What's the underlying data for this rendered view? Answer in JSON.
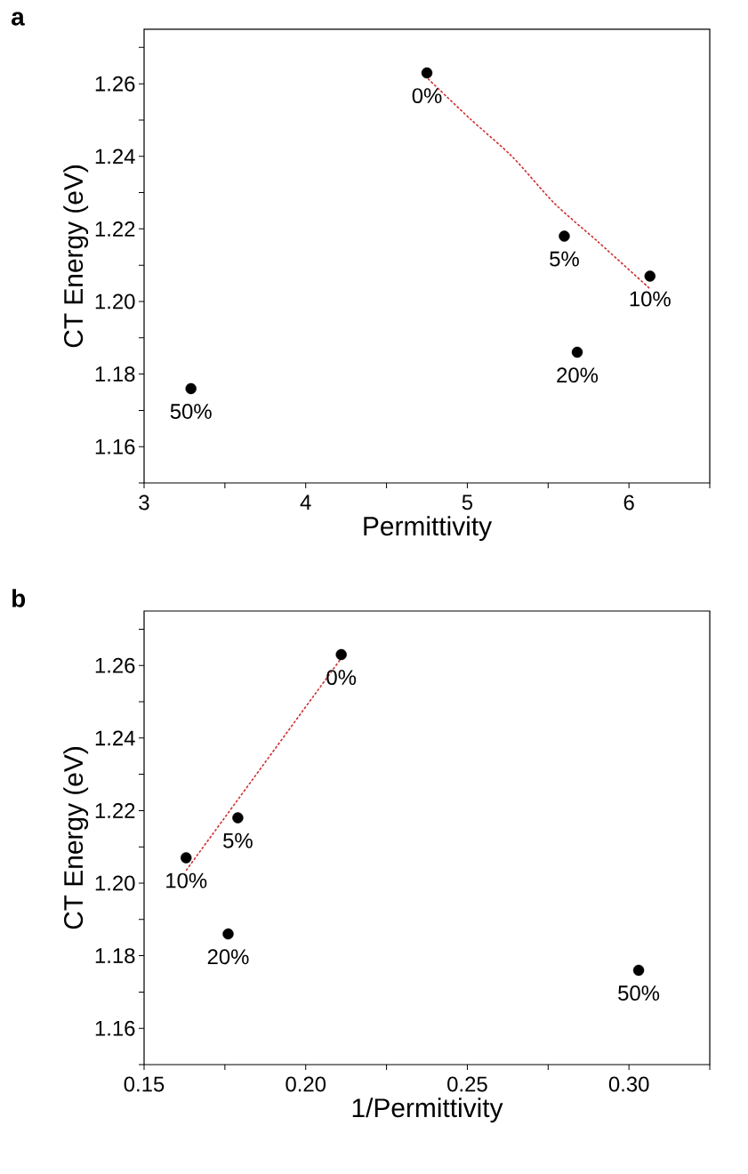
{
  "chart_data": [
    {
      "type": "scatter",
      "title": "a",
      "xlabel": "Permittivity",
      "ylabel": "CT Energy (eV)",
      "xlim": [
        3,
        6.5
      ],
      "ylim": [
        1.15,
        1.275
      ],
      "xticks": [
        3,
        {
          "value": 3.5,
          "label": null
        },
        4,
        {
          "value": 4.5,
          "label": null
        },
        5,
        {
          "value": 5.5,
          "label": null
        },
        6,
        {
          "value": 6.5,
          "label": null
        }
      ],
      "yticks": [
        {
          "value": 1.15,
          "label": null
        },
        1.16,
        {
          "value": 1.17,
          "label": null
        },
        1.18,
        {
          "value": 1.19,
          "label": null
        },
        {
          "value": 1.2,
          "label": "1.20"
        },
        {
          "value": 1.21,
          "label": null
        },
        1.22,
        {
          "value": 1.23,
          "label": null
        },
        1.24,
        {
          "value": 1.25,
          "label": null
        },
        1.26,
        {
          "value": 1.27,
          "label": null
        }
      ],
      "series": [
        {
          "type": "scatter",
          "color": "#000000",
          "marker": "circle",
          "x": [
            3.29,
            4.75,
            5.6,
            5.68,
            6.13
          ],
          "values": [
            1.176,
            1.263,
            1.218,
            1.186,
            1.207
          ]
        },
        {
          "type": "line",
          "color": "#d03030",
          "marker": "none",
          "line_style": "dashed",
          "x": [
            4.756,
            5.018,
            5.28,
            5.54,
            5.81,
            6.13
          ],
          "values": [
            1.2614,
            1.2503,
            1.2398,
            1.227,
            1.2164,
            1.2035
          ]
        }
      ],
      "annotations": [
        {
          "text": "50%",
          "x": 3.29,
          "y": 1.176
        },
        {
          "text": "0%",
          "x": 4.75,
          "y": 1.263
        },
        {
          "text": "5%",
          "x": 5.6,
          "y": 1.218
        },
        {
          "text": "20%",
          "x": 5.68,
          "y": 1.186
        },
        {
          "text": "10%",
          "x": 6.13,
          "y": 1.207
        }
      ]
    },
    {
      "type": "scatter",
      "title": "b",
      "xlabel": "1/Permittivity",
      "ylabel": "CT Energy (eV)",
      "xlim": [
        0.15,
        0.325
      ],
      "ylim": [
        1.15,
        1.275
      ],
      "xticks": [
        0.15,
        {
          "value": 0.175,
          "label": null
        },
        {
          "value": 0.2,
          "label": "0.20"
        },
        {
          "value": 0.225,
          "label": null
        },
        0.25,
        {
          "value": 0.275,
          "label": null
        },
        {
          "value": 0.3,
          "label": "0.30"
        },
        {
          "value": 0.325,
          "label": null
        }
      ],
      "yticks": [
        {
          "value": 1.15,
          "label": null
        },
        1.16,
        {
          "value": 1.17,
          "label": null
        },
        1.18,
        {
          "value": 1.19,
          "label": null
        },
        {
          "value": 1.2,
          "label": "1.20"
        },
        {
          "value": 1.21,
          "label": null
        },
        1.22,
        {
          "value": 1.23,
          "label": null
        },
        1.24,
        {
          "value": 1.25,
          "label": null
        },
        1.26,
        {
          "value": 1.27,
          "label": null
        }
      ],
      "series": [
        {
          "type": "scatter",
          "color": "#000000",
          "marker": "circle",
          "x": [
            0.163,
            0.176,
            0.179,
            0.211,
            0.303
          ],
          "values": [
            1.207,
            1.186,
            1.218,
            1.263,
            1.176
          ]
        },
        {
          "type": "line",
          "color": "#d03030",
          "marker": "none",
          "line_style": "dashed",
          "x": [
            0.163,
            0.211
          ],
          "values": [
            1.2035,
            1.262
          ]
        }
      ],
      "annotations": [
        {
          "text": "10%",
          "x": 0.163,
          "y": 1.207
        },
        {
          "text": "20%",
          "x": 0.176,
          "y": 1.186
        },
        {
          "text": "5%",
          "x": 0.179,
          "y": 1.218
        },
        {
          "text": "0%",
          "x": 0.211,
          "y": 1.263
        },
        {
          "text": "50%",
          "x": 0.303,
          "y": 1.176
        }
      ]
    }
  ]
}
